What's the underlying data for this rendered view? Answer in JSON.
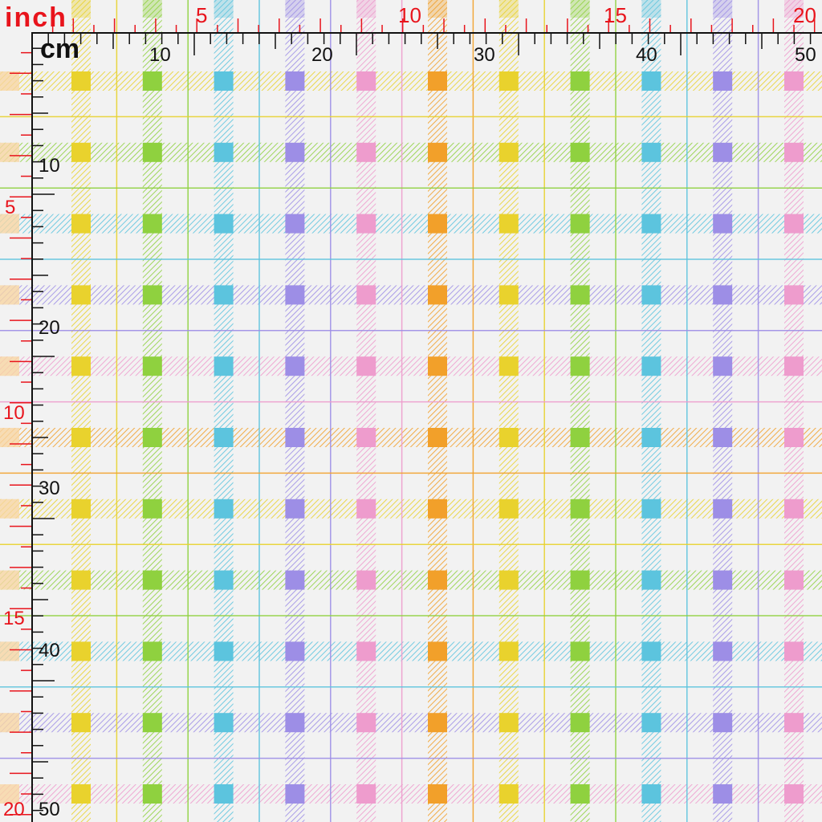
{
  "units": {
    "inch_label": "inch",
    "cm_label": "cm"
  },
  "inch_ticks": [
    "5",
    "10",
    "15",
    "20"
  ],
  "cm_ticks": [
    "10",
    "20",
    "30",
    "40",
    "50"
  ],
  "left_inch_ticks": [
    "5",
    "10",
    "15",
    "20"
  ],
  "left_cm_ticks": [
    "10",
    "20",
    "30",
    "40",
    "50"
  ],
  "colors": {
    "background": "#f2f2f2",
    "ruler_red": "#e8141c",
    "ruler_black": "#111111",
    "stripe_colors": [
      "#e9d22d",
      "#8fd13f",
      "#5cc4de",
      "#9d8ee6",
      "#ee9ccd",
      "#f2a02a"
    ],
    "vertical_order": [
      "#e9d22d",
      "#8fd13f",
      "#5cc4de",
      "#9d8ee6",
      "#ee9ccd",
      "#f2a02a",
      "#e9d22d",
      "#8fd13f",
      "#5cc4de",
      "#9d8ee6",
      "#ee9ccd"
    ],
    "horizontal_order": [
      "#e9d22d",
      "#8fd13f",
      "#5cc4de",
      "#9d8ee6",
      "#ee9ccd",
      "#f2a02a",
      "#e9d22d",
      "#8fd13f",
      "#5cc4de",
      "#9d8ee6",
      "#ee9ccd"
    ]
  },
  "pattern": {
    "name_icon": "plaid-check-pattern"
  }
}
